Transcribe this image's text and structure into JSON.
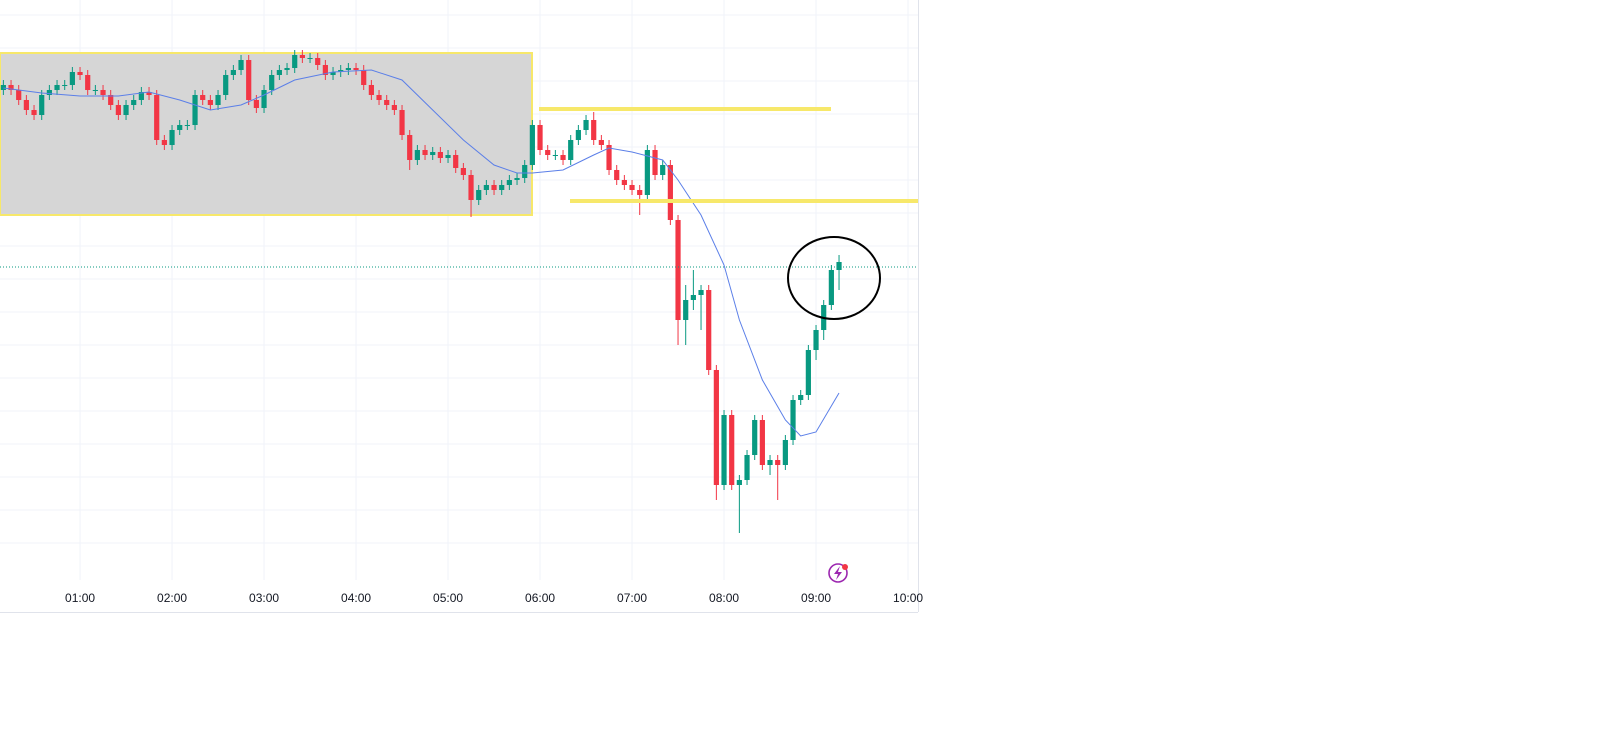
{
  "chart_data": {
    "type": "candlestick",
    "x": [
      10,
      15,
      20,
      25,
      30,
      35,
      40,
      45,
      50,
      55,
      60,
      65,
      70,
      75,
      80,
      85,
      90,
      95,
      100,
      105,
      110,
      115,
      120,
      125,
      130,
      135,
      140,
      145,
      150,
      155,
      160,
      165,
      170,
      175,
      180,
      185,
      190,
      195,
      200,
      205,
      210,
      215,
      220,
      225,
      230,
      235,
      240,
      245,
      250,
      255,
      260,
      265,
      270,
      275,
      280,
      285,
      290,
      295,
      300,
      305,
      310,
      315,
      320,
      325,
      330,
      335,
      340,
      345,
      350,
      355,
      360,
      365,
      370,
      375,
      380,
      385,
      390,
      395,
      400,
      405,
      410,
      415,
      420,
      425,
      430,
      435,
      440,
      445,
      450,
      455,
      460,
      465,
      470,
      475,
      480,
      485,
      490,
      495,
      500,
      505,
      510,
      515,
      520,
      525,
      530,
      535,
      540,
      545,
      550,
      555
    ],
    "open": [
      510,
      515,
      510,
      500,
      490,
      485,
      505,
      510,
      515,
      515,
      528,
      525,
      510,
      510,
      505,
      495,
      485,
      495,
      500,
      508,
      505,
      460,
      455,
      470,
      475,
      475,
      505,
      500,
      495,
      505,
      525,
      530,
      540,
      500,
      492,
      510,
      525,
      530,
      532,
      545,
      542,
      542,
      535,
      525,
      528,
      530,
      532,
      530,
      515,
      505,
      500,
      495,
      490,
      465,
      440,
      450,
      445,
      448,
      442,
      445,
      432,
      425,
      400,
      410,
      415,
      410,
      415,
      420,
      422,
      435,
      475,
      450,
      445,
      445,
      440,
      460,
      470,
      480,
      460,
      455,
      430,
      420,
      415,
      410,
      405,
      450,
      425,
      435,
      380,
      280,
      300,
      305,
      310,
      230,
      115,
      185,
      115,
      120,
      145,
      180,
      135,
      140,
      135,
      160,
      200,
      205,
      250,
      270,
      295,
      330
    ],
    "high": [
      520,
      520,
      515,
      505,
      495,
      510,
      515,
      520,
      520,
      533,
      533,
      530,
      515,
      515,
      510,
      500,
      500,
      505,
      513,
      513,
      510,
      465,
      475,
      480,
      480,
      510,
      510,
      505,
      510,
      530,
      535,
      545,
      545,
      505,
      515,
      530,
      535,
      537,
      550,
      550,
      547,
      547,
      540,
      533,
      535,
      537,
      537,
      535,
      520,
      510,
      505,
      500,
      495,
      470,
      455,
      455,
      453,
      453,
      450,
      450,
      437,
      430,
      415,
      420,
      420,
      420,
      425,
      427,
      440,
      480,
      480,
      455,
      450,
      450,
      465,
      475,
      485,
      488,
      465,
      460,
      435,
      425,
      420,
      415,
      455,
      455,
      440,
      440,
      385,
      315,
      330,
      315,
      315,
      235,
      190,
      190,
      125,
      150,
      185,
      185,
      145,
      145,
      165,
      205,
      210,
      255,
      275,
      300,
      335,
      345
    ],
    "low": [
      505,
      505,
      495,
      485,
      480,
      480,
      500,
      505,
      510,
      510,
      520,
      505,
      505,
      500,
      490,
      480,
      480,
      490,
      495,
      500,
      455,
      450,
      450,
      465,
      470,
      470,
      495,
      490,
      490,
      500,
      520,
      525,
      495,
      487,
      487,
      505,
      520,
      525,
      527,
      537,
      537,
      530,
      520,
      520,
      523,
      525,
      525,
      510,
      500,
      495,
      490,
      485,
      460,
      430,
      435,
      440,
      440,
      437,
      437,
      427,
      420,
      383,
      395,
      405,
      405,
      405,
      410,
      415,
      417,
      430,
      445,
      440,
      440,
      435,
      435,
      455,
      465,
      455,
      450,
      425,
      415,
      410,
      405,
      385,
      400,
      420,
      420,
      375,
      255,
      255,
      290,
      270,
      225,
      100,
      110,
      110,
      67,
      115,
      140,
      130,
      125,
      100,
      130,
      155,
      195,
      200,
      240,
      260,
      290,
      310
    ],
    "close": [
      515,
      510,
      500,
      490,
      485,
      505,
      510,
      515,
      515,
      528,
      525,
      510,
      510,
      505,
      495,
      485,
      495,
      500,
      508,
      505,
      460,
      455,
      470,
      475,
      475,
      505,
      500,
      495,
      505,
      525,
      530,
      540,
      500,
      492,
      510,
      525,
      530,
      532,
      545,
      542,
      542,
      535,
      525,
      528,
      530,
      532,
      530,
      515,
      505,
      500,
      495,
      490,
      465,
      440,
      450,
      445,
      448,
      442,
      445,
      432,
      425,
      400,
      410,
      415,
      410,
      415,
      420,
      422,
      435,
      475,
      450,
      445,
      445,
      440,
      460,
      470,
      480,
      460,
      455,
      430,
      420,
      415,
      410,
      405,
      450,
      425,
      435,
      380,
      280,
      300,
      305,
      310,
      230,
      115,
      185,
      115,
      120,
      145,
      180,
      135,
      140,
      135,
      160,
      200,
      205,
      250,
      270,
      295,
      330,
      338
    ],
    "up_color": "#089981",
    "down_color": "#f23645",
    "ma": {
      "color": "#5b7fe8",
      "x": [
        10,
        35,
        60,
        85,
        105,
        125,
        145,
        165,
        180,
        200,
        225,
        250,
        270,
        290,
        310,
        330,
        345,
        355,
        375,
        395,
        405,
        420,
        440,
        450,
        465,
        480,
        490,
        505,
        520,
        530,
        540,
        555
      ],
      "values": [
        512,
        507,
        504,
        504,
        508,
        500,
        490,
        495,
        505,
        520,
        528,
        530,
        520,
        490,
        460,
        435,
        427,
        427,
        430,
        445,
        452,
        448,
        440,
        420,
        385,
        335,
        280,
        220,
        180,
        164,
        168,
        207
      ]
    },
    "xlim": [
      7.8,
      606.5
    ],
    "xticks": [
      {
        "value": 60,
        "label": "01:00"
      },
      {
        "value": 120,
        "label": "02:00"
      },
      {
        "value": 180,
        "label": "03:00"
      },
      {
        "value": 240,
        "label": "04:00"
      },
      {
        "value": 300,
        "label": "05:00"
      },
      {
        "value": 360,
        "label": "06:00"
      },
      {
        "value": 420,
        "label": "07:00"
      },
      {
        "value": 480,
        "label": "08:00"
      },
      {
        "value": 540,
        "label": "09:00"
      },
      {
        "value": 600,
        "label": "10:00"
      }
    ],
    "ylim": [
      20,
      600
    ],
    "grid": true
  }
}
